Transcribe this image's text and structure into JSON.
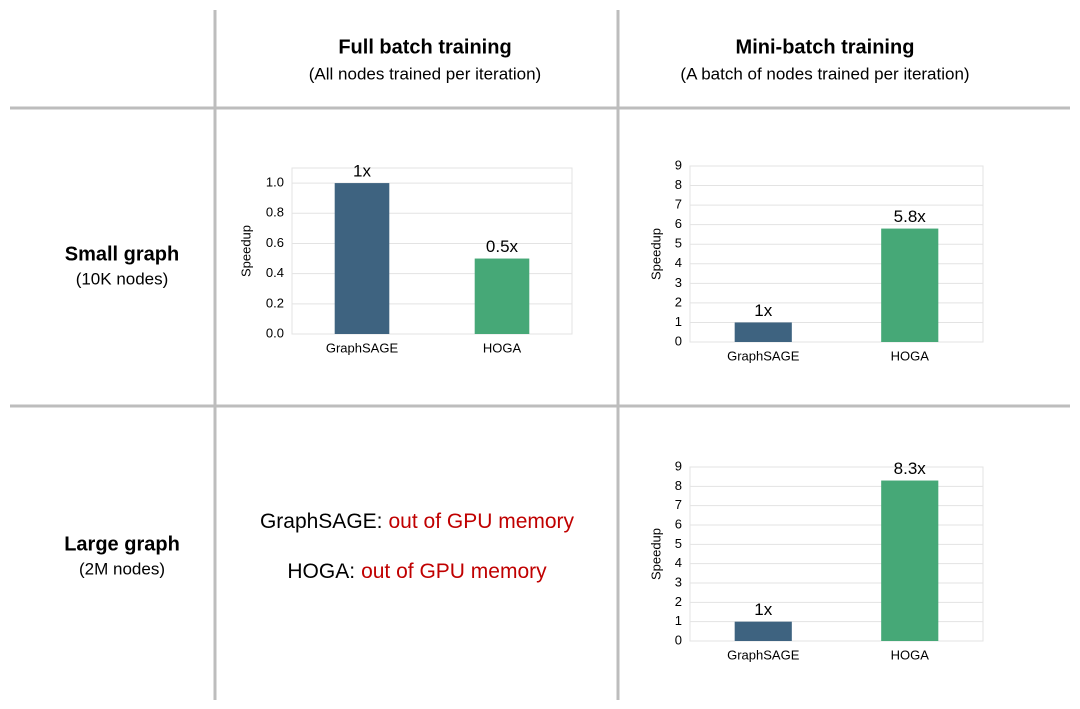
{
  "table": {
    "columns": [
      {
        "title": "Full batch training",
        "subtitle": "(All nodes trained per iteration)"
      },
      {
        "title": "Mini-batch training",
        "subtitle": "(A batch of nodes trained per iteration)"
      }
    ],
    "rows": [
      {
        "title": "Small graph",
        "subtitle": "(10K nodes)"
      },
      {
        "title": "Large graph",
        "subtitle": "(2M nodes)"
      }
    ],
    "notes": [
      {
        "name": "GraphSAGE:",
        "text": "out of GPU memory",
        "color": "#c00000"
      },
      {
        "name": "HOGA:",
        "text": "out of GPU memory",
        "color": "#c00000"
      }
    ]
  },
  "chart_data": [
    {
      "type": "bar",
      "ylabel": "Speedup",
      "categories": [
        "GraphSAGE",
        "HOGA"
      ],
      "values": [
        1,
        0.5
      ],
      "value_labels": [
        "1x",
        "0.5x"
      ],
      "colors": [
        "#3e6380",
        "#46a877"
      ],
      "label_colors": [
        "#000000",
        "#c00000"
      ],
      "ylim": [
        0,
        1.1
      ],
      "yticks": [
        {
          "value": 0,
          "label": "0.0"
        },
        0.2,
        0.4,
        0.6,
        0.8,
        {
          "value": 1,
          "label": "1.0"
        }
      ],
      "grid": true
    },
    {
      "type": "bar",
      "ylabel": "Speedup",
      "categories": [
        "GraphSAGE",
        "HOGA"
      ],
      "values": [
        1,
        5.8
      ],
      "value_labels": [
        "1x",
        "5.8x"
      ],
      "colors": [
        "#3e6380",
        "#46a877"
      ],
      "label_colors": [
        "#000000",
        "#1fb050"
      ],
      "ylim": [
        0,
        9
      ],
      "yticks": [
        0,
        1,
        2,
        3,
        4,
        5,
        6,
        7,
        8,
        9
      ],
      "grid": true
    },
    {
      "type": "bar",
      "ylabel": "Speedup",
      "categories": [
        "GraphSAGE",
        "HOGA"
      ],
      "values": [
        1,
        8.3
      ],
      "value_labels": [
        "1x",
        "8.3x"
      ],
      "colors": [
        "#3e6380",
        "#46a877"
      ],
      "label_colors": [
        "#000000",
        "#1fb050"
      ],
      "ylim": [
        0,
        9
      ],
      "yticks": [
        0,
        1,
        2,
        3,
        4,
        5,
        6,
        7,
        8,
        9
      ],
      "grid": true
    }
  ]
}
